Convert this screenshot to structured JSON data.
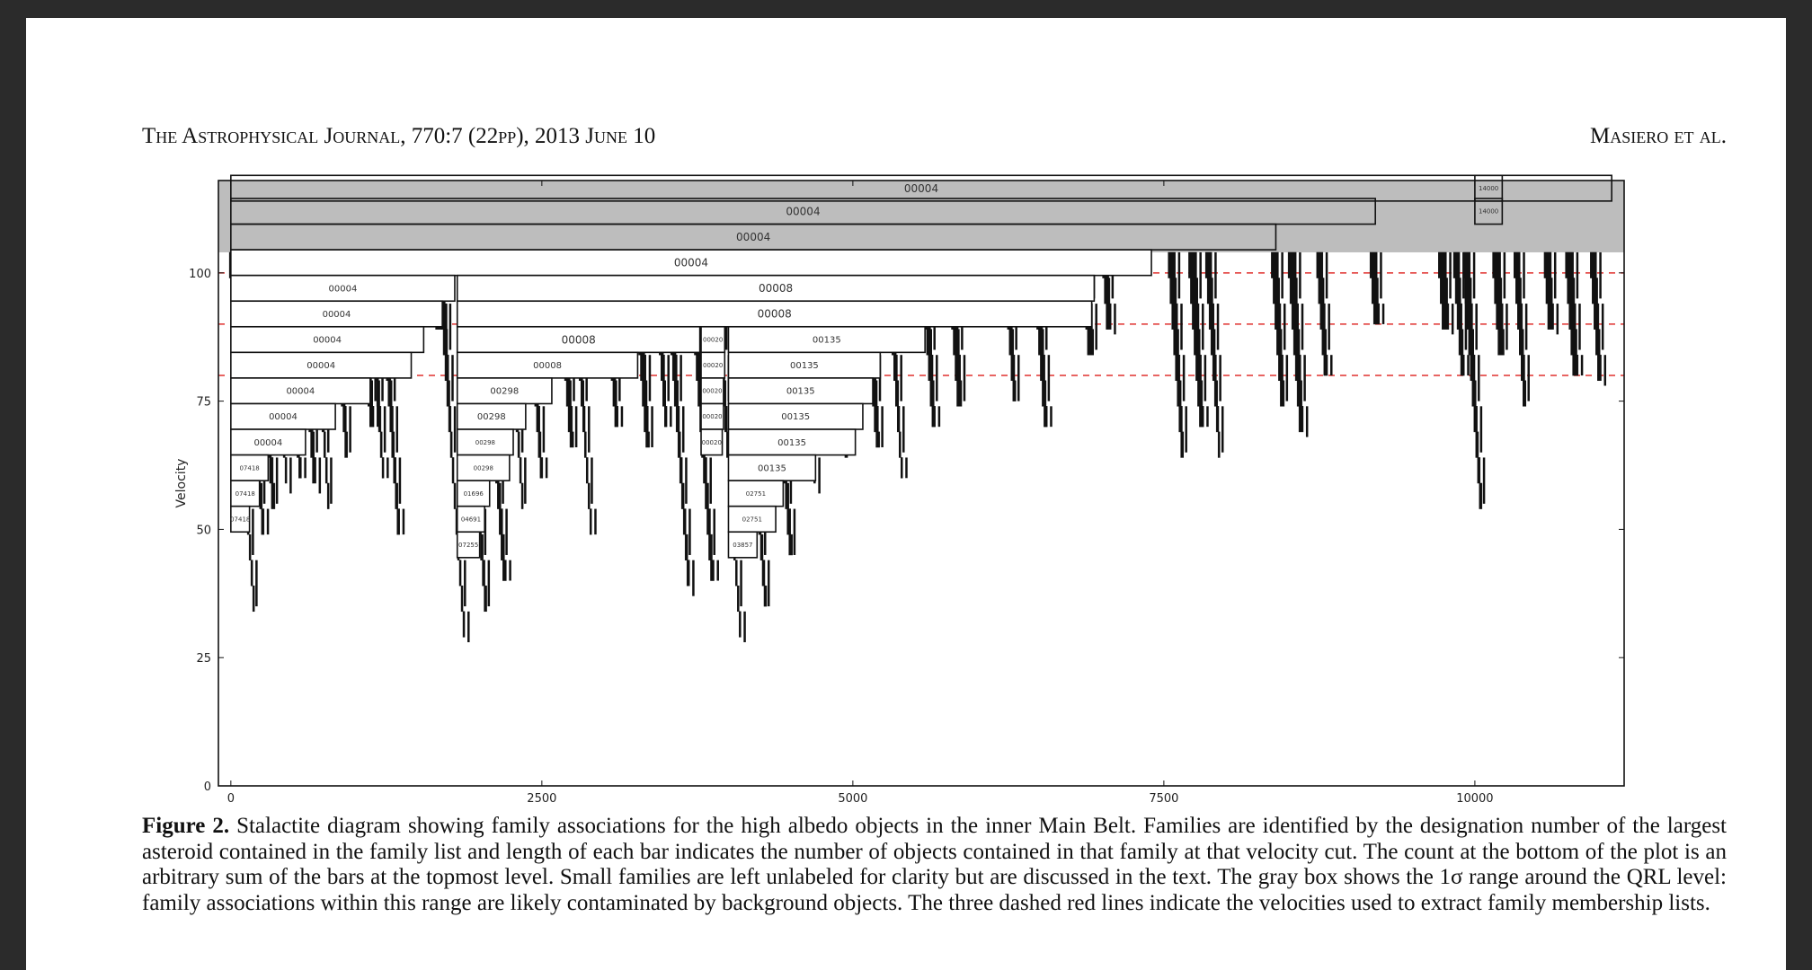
{
  "header": {
    "journal": "The Astrophysical Journal, 770:7 (22pp), 2013 June 10",
    "authors": "Masiero et al."
  },
  "figure": {
    "caption_label": "Figure 2.",
    "caption_text": "Stalactite diagram showing family associations for the high albedo objects in the inner Main Belt. Families are identified by the designation number of the largest asteroid contained in the family list and length of each bar indicates the number of objects contained in that family at that velocity cut. The count at the bottom of the plot is an arbitrary sum of the bars at the topmost level. Small families are left unlabeled for clarity but are discussed in the text. The gray box shows the 1σ range around the QRL level: family associations within this range are likely contaminated by background objects. The three dashed red lines indicate the velocities used to extract family membership lists."
  },
  "chart_data": {
    "type": "bar",
    "orientation": "horizontal-stalactite",
    "title": "",
    "xlabel": "",
    "ylabel": "Velocity",
    "xlim": [
      -100,
      11200
    ],
    "ylim": [
      0,
      118
    ],
    "xticks": [
      0,
      2500,
      5000,
      7500,
      10000
    ],
    "yticks": [
      0,
      25,
      50,
      75,
      100
    ],
    "gray_box": {
      "y_min": 104,
      "y_max": 118,
      "color": "#bdbdbd"
    },
    "red_lines": {
      "y": [
        100,
        90,
        80
      ],
      "color": "#e0312e"
    },
    "bar_height": 5,
    "labeled_bars": [
      {
        "label": "00004",
        "x_start": 0,
        "length": 11100,
        "y": 116.5
      },
      {
        "label": "00004",
        "x_start": 0,
        "length": 9200,
        "y": 112
      },
      {
        "label": "00004",
        "x_start": 0,
        "length": 8400,
        "y": 107
      },
      {
        "label": "00004",
        "x_start": 0,
        "length": 7400,
        "y": 102
      },
      {
        "label": "00004",
        "x_start": 0,
        "length": 1800,
        "y": 97
      },
      {
        "label": "00004",
        "x_start": 0,
        "length": 1700,
        "y": 92
      },
      {
        "label": "00004",
        "x_start": 0,
        "length": 1550,
        "y": 87
      },
      {
        "label": "00004",
        "x_start": 0,
        "length": 1450,
        "y": 82
      },
      {
        "label": "00004",
        "x_start": 0,
        "length": 1120,
        "y": 77
      },
      {
        "label": "00004",
        "x_start": 0,
        "length": 840,
        "y": 72
      },
      {
        "label": "00004",
        "x_start": 0,
        "length": 600,
        "y": 67
      },
      {
        "label": "07418",
        "x_start": 0,
        "length": 300,
        "y": 62
      },
      {
        "label": "07418",
        "x_start": 0,
        "length": 230,
        "y": 57
      },
      {
        "label": "07418",
        "x_start": 0,
        "length": 150,
        "y": 52
      },
      {
        "label": "00008",
        "x_start": 1820,
        "length": 5120,
        "y": 97
      },
      {
        "label": "00008",
        "x_start": 1820,
        "length": 5100,
        "y": 92
      },
      {
        "label": "00008",
        "x_start": 1820,
        "length": 1950,
        "y": 87
      },
      {
        "label": "00008",
        "x_start": 1820,
        "length": 1450,
        "y": 82
      },
      {
        "label": "00298",
        "x_start": 1820,
        "length": 760,
        "y": 77
      },
      {
        "label": "00298",
        "x_start": 1820,
        "length": 550,
        "y": 72
      },
      {
        "label": "00298",
        "x_start": 1820,
        "length": 450,
        "y": 67
      },
      {
        "label": "00298",
        "x_start": 1820,
        "length": 420,
        "y": 62
      },
      {
        "label": "01696",
        "x_start": 1820,
        "length": 260,
        "y": 57
      },
      {
        "label": "04691",
        "x_start": 1820,
        "length": 220,
        "y": 52
      },
      {
        "label": "07255",
        "x_start": 1820,
        "length": 180,
        "y": 47
      },
      {
        "label": "00020",
        "x_start": 3780,
        "length": 190,
        "y": 87
      },
      {
        "label": "00020",
        "x_start": 3780,
        "length": 190,
        "y": 82
      },
      {
        "label": "00020",
        "x_start": 3780,
        "length": 180,
        "y": 77
      },
      {
        "label": "00020",
        "x_start": 3780,
        "length": 180,
        "y": 72
      },
      {
        "label": "00020",
        "x_start": 3780,
        "length": 170,
        "y": 67
      },
      {
        "label": "00135",
        "x_start": 4000,
        "length": 1580,
        "y": 87
      },
      {
        "label": "00135",
        "x_start": 4000,
        "length": 1220,
        "y": 82
      },
      {
        "label": "00135",
        "x_start": 4000,
        "length": 1160,
        "y": 77
      },
      {
        "label": "00135",
        "x_start": 4000,
        "length": 1080,
        "y": 72
      },
      {
        "label": "00135",
        "x_start": 4000,
        "length": 1020,
        "y": 67
      },
      {
        "label": "00135",
        "x_start": 4000,
        "length": 700,
        "y": 62
      },
      {
        "label": "02751",
        "x_start": 4000,
        "length": 440,
        "y": 57
      },
      {
        "label": "02751",
        "x_start": 4000,
        "length": 380,
        "y": 52
      },
      {
        "label": "03857",
        "x_start": 4000,
        "length": 230,
        "y": 47
      },
      {
        "label": "14000",
        "x_start": 10000,
        "length": 220,
        "y": 116.5
      },
      {
        "label": "14000",
        "x_start": 10000,
        "length": 220,
        "y": 112
      }
    ],
    "small_clusters": [
      {
        "x": 190,
        "y_bottom": 33
      },
      {
        "x": 260,
        "y_bottom": 49
      },
      {
        "x": 340,
        "y_bottom": 52
      },
      {
        "x": 450,
        "y_bottom": 57
      },
      {
        "x": 560,
        "y_bottom": 60
      },
      {
        "x": 670,
        "y_bottom": 57
      },
      {
        "x": 790,
        "y_bottom": 52
      },
      {
        "x": 930,
        "y_bottom": 64
      },
      {
        "x": 1130,
        "y_bottom": 70
      },
      {
        "x": 1230,
        "y_bottom": 60
      },
      {
        "x": 1350,
        "y_bottom": 49
      },
      {
        "x": 1660,
        "y_bottom": 88
      },
      {
        "x": 1880,
        "y_bottom": 28
      },
      {
        "x": 2050,
        "y_bottom": 33
      },
      {
        "x": 2200,
        "y_bottom": 40
      },
      {
        "x": 2350,
        "y_bottom": 52
      },
      {
        "x": 2500,
        "y_bottom": 60
      },
      {
        "x": 2740,
        "y_bottom": 66
      },
      {
        "x": 2900,
        "y_bottom": 49
      },
      {
        "x": 3100,
        "y_bottom": 70
      },
      {
        "x": 3350,
        "y_bottom": 66
      },
      {
        "x": 3500,
        "y_bottom": 70
      },
      {
        "x": 3680,
        "y_bottom": 37
      },
      {
        "x": 3870,
        "y_bottom": 40
      },
      {
        "x": 4100,
        "y_bottom": 28
      },
      {
        "x": 4300,
        "y_bottom": 35
      },
      {
        "x": 4500,
        "y_bottom": 45
      },
      {
        "x": 4700,
        "y_bottom": 57
      },
      {
        "x": 4950,
        "y_bottom": 62
      },
      {
        "x": 5200,
        "y_bottom": 66
      },
      {
        "x": 5400,
        "y_bottom": 60
      },
      {
        "x": 5650,
        "y_bottom": 70
      },
      {
        "x": 5850,
        "y_bottom": 72
      },
      {
        "x": 6300,
        "y_bottom": 75
      },
      {
        "x": 6550,
        "y_bottom": 70
      },
      {
        "x": 6900,
        "y_bottom": 84
      },
      {
        "x": 7050,
        "y_bottom": 88
      },
      {
        "x": 7650,
        "y_bottom": 62
      },
      {
        "x": 7800,
        "y_bottom": 70
      },
      {
        "x": 7950,
        "y_bottom": 62
      },
      {
        "x": 8450,
        "y_bottom": 73
      },
      {
        "x": 8600,
        "y_bottom": 68
      },
      {
        "x": 8800,
        "y_bottom": 80
      },
      {
        "x": 9200,
        "y_bottom": 90
      },
      {
        "x": 9750,
        "y_bottom": 88
      },
      {
        "x": 9900,
        "y_bottom": 80
      },
      {
        "x": 10050,
        "y_bottom": 52
      },
      {
        "x": 10200,
        "y_bottom": 84
      },
      {
        "x": 10400,
        "y_bottom": 72
      },
      {
        "x": 10600,
        "y_bottom": 88
      },
      {
        "x": 10800,
        "y_bottom": 80
      },
      {
        "x": 11000,
        "y_bottom": 78
      }
    ]
  }
}
